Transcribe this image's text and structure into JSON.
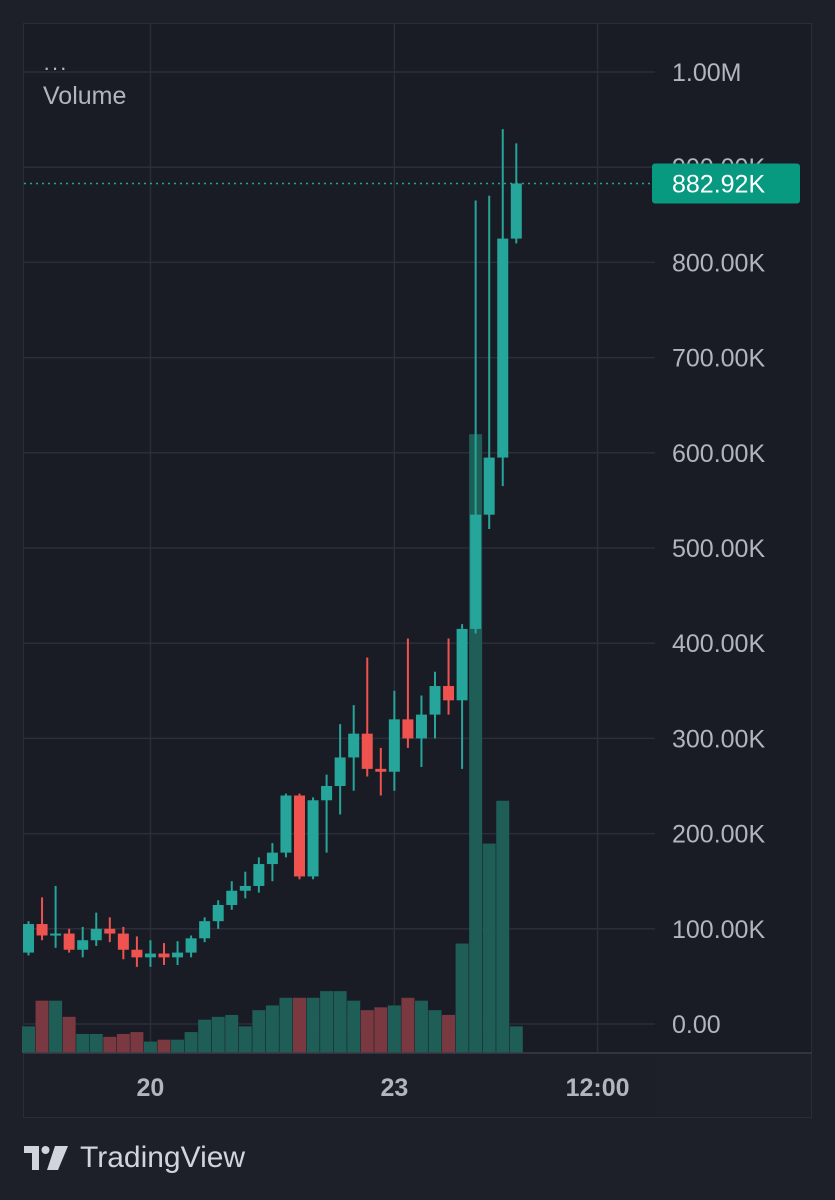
{
  "legend": {
    "menu_glyph": "···",
    "series_label": "Volume"
  },
  "price_label": {
    "value": 882920,
    "text": "882.92K"
  },
  "colors": {
    "up": "#26a69a",
    "down": "#ef5350",
    "volume_up": "#1e5e57",
    "volume_down": "#7a3840",
    "grid": "#2b2e39",
    "axis_text": "#b2b5be",
    "label_bg": "#089981"
  },
  "brand": {
    "name": "TradingView",
    "icon": "tradingview-logo-icon"
  },
  "chart_data": {
    "type": "candlestick",
    "y_axis": {
      "min": 0,
      "max": 1000000,
      "ticks": [
        {
          "value": 1000000,
          "label": "1.00M"
        },
        {
          "value": 900000,
          "label": "900.00K"
        },
        {
          "value": 800000,
          "label": "800.00K"
        },
        {
          "value": 700000,
          "label": "700.00K"
        },
        {
          "value": 600000,
          "label": "600.00K"
        },
        {
          "value": 500000,
          "label": "500.00K"
        },
        {
          "value": 400000,
          "label": "400.00K"
        },
        {
          "value": 300000,
          "label": "300.00K"
        },
        {
          "value": 200000,
          "label": "200.00K"
        },
        {
          "value": 100000,
          "label": "100.00K"
        },
        {
          "value": 0,
          "label": "0.00"
        }
      ]
    },
    "x_axis": {
      "ticks": [
        {
          "index": 9,
          "label": "20"
        },
        {
          "index": 27,
          "label": "23"
        },
        {
          "index": 42,
          "label": "12:00"
        }
      ]
    },
    "candles": [
      {
        "o": 75000,
        "h": 108000,
        "l": 72000,
        "c": 105000,
        "v": 0.28
      },
      {
        "o": 105000,
        "h": 133000,
        "l": 88000,
        "c": 93000,
        "v": 0.55
      },
      {
        "o": 93000,
        "h": 145000,
        "l": 80000,
        "c": 95000,
        "v": 0.55
      },
      {
        "o": 95000,
        "h": 100000,
        "l": 75000,
        "c": 78000,
        "v": 0.38
      },
      {
        "o": 78000,
        "h": 102000,
        "l": 70000,
        "c": 88000,
        "v": 0.2
      },
      {
        "o": 88000,
        "h": 117000,
        "l": 82000,
        "c": 100000,
        "v": 0.2
      },
      {
        "o": 100000,
        "h": 112000,
        "l": 86000,
        "c": 95000,
        "v": 0.17
      },
      {
        "o": 95000,
        "h": 102000,
        "l": 68000,
        "c": 78000,
        "v": 0.2
      },
      {
        "o": 78000,
        "h": 92000,
        "l": 60000,
        "c": 70000,
        "v": 0.22
      },
      {
        "o": 70000,
        "h": 88000,
        "l": 60000,
        "c": 74000,
        "v": 0.12
      },
      {
        "o": 74000,
        "h": 85000,
        "l": 62000,
        "c": 70000,
        "v": 0.14
      },
      {
        "o": 70000,
        "h": 87000,
        "l": 62000,
        "c": 75000,
        "v": 0.14
      },
      {
        "o": 75000,
        "h": 93000,
        "l": 70000,
        "c": 90000,
        "v": 0.22
      },
      {
        "o": 90000,
        "h": 112000,
        "l": 86000,
        "c": 108000,
        "v": 0.35
      },
      {
        "o": 108000,
        "h": 130000,
        "l": 100000,
        "c": 125000,
        "v": 0.38
      },
      {
        "o": 125000,
        "h": 150000,
        "l": 120000,
        "c": 140000,
        "v": 0.4
      },
      {
        "o": 140000,
        "h": 160000,
        "l": 132000,
        "c": 145000,
        "v": 0.28
      },
      {
        "o": 145000,
        "h": 175000,
        "l": 138000,
        "c": 168000,
        "v": 0.45
      },
      {
        "o": 168000,
        "h": 190000,
        "l": 150000,
        "c": 180000,
        "v": 0.5
      },
      {
        "o": 180000,
        "h": 242000,
        "l": 175000,
        "c": 240000,
        "v": 0.58
      },
      {
        "o": 240000,
        "h": 242000,
        "l": 152000,
        "c": 155000,
        "v": 0.58
      },
      {
        "o": 155000,
        "h": 238000,
        "l": 152000,
        "c": 235000,
        "v": 0.58
      },
      {
        "o": 235000,
        "h": 262000,
        "l": 180000,
        "c": 250000,
        "v": 0.65
      },
      {
        "o": 250000,
        "h": 315000,
        "l": 220000,
        "c": 280000,
        "v": 0.65
      },
      {
        "o": 280000,
        "h": 335000,
        "l": 245000,
        "c": 305000,
        "v": 0.55
      },
      {
        "o": 305000,
        "h": 385000,
        "l": 260000,
        "c": 268000,
        "v": 0.45
      },
      {
        "o": 268000,
        "h": 290000,
        "l": 240000,
        "c": 265000,
        "v": 0.48
      },
      {
        "o": 265000,
        "h": 350000,
        "l": 245000,
        "c": 320000,
        "v": 0.5
      },
      {
        "o": 320000,
        "h": 405000,
        "l": 290000,
        "c": 300000,
        "v": 0.58
      },
      {
        "o": 300000,
        "h": 345000,
        "l": 270000,
        "c": 325000,
        "v": 0.55
      },
      {
        "o": 325000,
        "h": 370000,
        "l": 300000,
        "c": 355000,
        "v": 0.45
      },
      {
        "o": 355000,
        "h": 405000,
        "l": 325000,
        "c": 340000,
        "v": 0.4
      },
      {
        "o": 340000,
        "h": 420000,
        "l": 268000,
        "c": 415000,
        "v": 1.15
      },
      {
        "o": 415000,
        "h": 865000,
        "l": 410000,
        "c": 535000,
        "v": 6.5
      },
      {
        "o": 535000,
        "h": 870000,
        "l": 520000,
        "c": 595000,
        "v": 2.2
      },
      {
        "o": 595000,
        "h": 940000,
        "l": 565000,
        "c": 825000,
        "v": 2.65
      },
      {
        "o": 825000,
        "h": 925000,
        "l": 820000,
        "c": 882920,
        "v": 0.28
      }
    ]
  }
}
